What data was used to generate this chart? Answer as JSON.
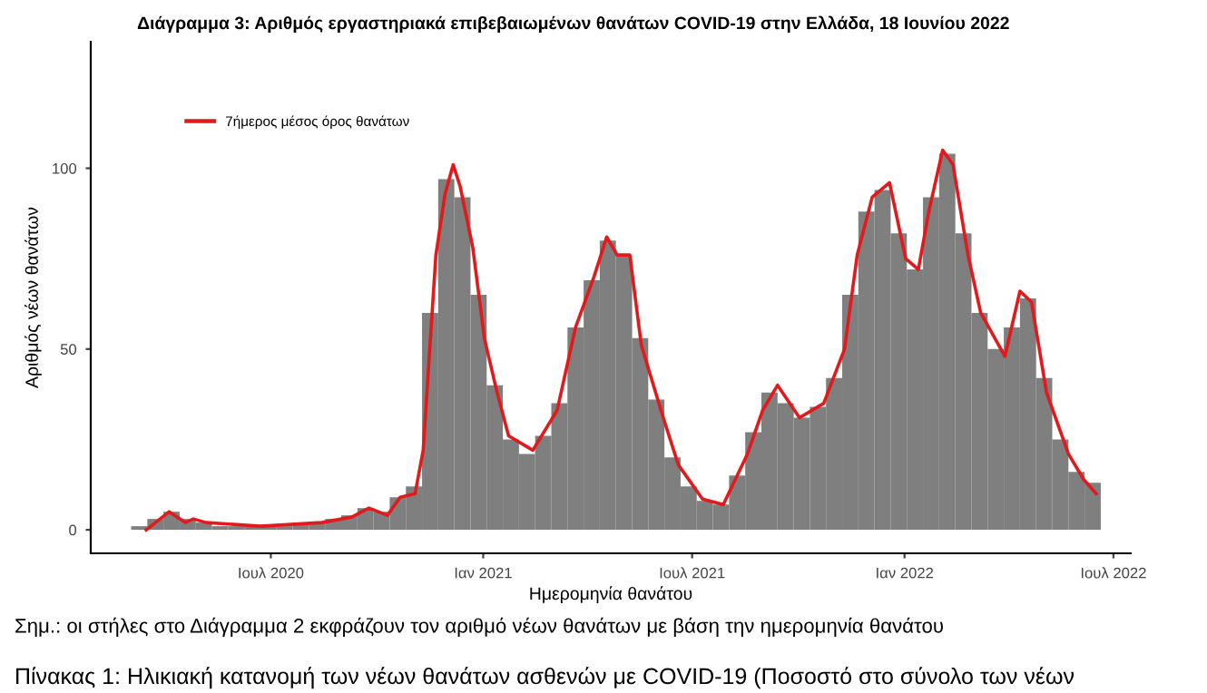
{
  "chart_data": {
    "type": "bar",
    "title": "Διάγραμμα 3: Αριθμός εργαστηριακά επιβεβαιωμένων θανάτων COVID-19 στην Ελλάδα, 18 Ιουνίου 2022",
    "xlabel": "Ημερομηνία θανάτου",
    "ylabel": "Αριθμός νέων θανάτων",
    "annotations": [
      "Σημ.: οι στήλες στο Διάγραμμα 2 εκφράζουν τον αριθμό νέων θανάτων με βάση την ημερομηνία θανάτου",
      "Πίνακας 1: Ηλικιακή κατανομή των νέων θανάτων ασθενών με COVID-19 (Ποσοστό στο σύνολο των νέων"
    ],
    "xlim": [
      "2020-01-27",
      "2022-07-16"
    ],
    "ylim": [
      -6.5,
      135
    ],
    "xticks": [
      {
        "value": "2020-07-01",
        "label": "Ιουλ 2020"
      },
      {
        "value": "2021-01-01",
        "label": "Ιαν 2021"
      },
      {
        "value": "2021-07-01",
        "label": "Ιουλ 2021"
      },
      {
        "value": "2022-01-01",
        "label": "Ιαν 2022"
      },
      {
        "value": "2022-07-01",
        "label": "Ιουλ 2022"
      }
    ],
    "yticks": [
      0,
      50,
      100
    ],
    "grid": false,
    "legend": "top left",
    "line_style": "solid",
    "marker": "none",
    "series": [
      {
        "color": "#7f7f7f",
        "x": [
          "2020-03-09",
          "2020-03-23",
          "2020-04-06",
          "2020-04-20",
          "2020-05-04",
          "2020-05-18",
          "2020-06-01",
          "2020-06-15",
          "2020-06-29",
          "2020-07-13",
          "2020-07-27",
          "2020-08-10",
          "2020-08-24",
          "2020-09-07",
          "2020-09-21",
          "2020-10-05",
          "2020-10-19",
          "2020-11-02",
          "2020-11-16",
          "2020-11-30",
          "2020-12-14",
          "2020-12-28",
          "2021-01-11",
          "2021-01-25",
          "2021-02-08",
          "2021-02-22",
          "2021-03-08",
          "2021-03-22",
          "2021-04-05",
          "2021-04-19",
          "2021-05-03",
          "2021-05-17",
          "2021-05-31",
          "2021-06-14",
          "2021-06-28",
          "2021-07-12",
          "2021-07-26",
          "2021-08-09",
          "2021-08-23",
          "2021-09-06",
          "2021-09-20",
          "2021-10-04",
          "2021-10-18",
          "2021-11-01",
          "2021-11-15",
          "2021-11-29",
          "2021-12-13",
          "2021-12-27",
          "2022-01-10",
          "2022-01-24",
          "2022-02-07",
          "2022-02-21",
          "2022-03-07",
          "2022-03-21",
          "2022-04-04",
          "2022-04-18",
          "2022-05-02",
          "2022-05-16",
          "2022-05-30",
          "2022-06-13"
        ],
        "values": [
          1,
          3,
          5,
          3,
          2,
          1,
          1,
          1,
          1,
          1,
          2,
          2,
          3,
          4,
          6,
          5,
          9,
          12,
          60,
          97,
          92,
          65,
          40,
          25,
          21,
          26,
          35,
          56,
          69,
          80,
          76,
          53,
          36,
          20,
          12,
          8,
          7,
          15,
          27,
          38,
          35,
          31,
          34,
          42,
          65,
          88,
          94,
          82,
          72,
          92,
          104,
          82,
          60,
          50,
          56,
          64,
          42,
          25,
          16,
          13
        ]
      },
      {
        "type": "line",
        "name": "7ήμερος μέσος όρος θανάτων",
        "color": "#e31a1c",
        "x": [
          "2020-03-15",
          "2020-04-04",
          "2020-04-18",
          "2020-04-25",
          "2020-05-06",
          "2020-06-22",
          "2020-08-14",
          "2020-09-09",
          "2020-09-24",
          "2020-10-10",
          "2020-10-21",
          "2020-11-03",
          "2020-11-10",
          "2020-11-21",
          "2020-11-29",
          "2020-12-06",
          "2020-12-12",
          "2020-12-23",
          "2021-01-02",
          "2021-01-13",
          "2021-01-23",
          "2021-02-13",
          "2021-03-06",
          "2021-03-22",
          "2021-04-07",
          "2021-04-18",
          "2021-04-27",
          "2021-05-08",
          "2021-05-18",
          "2021-06-06",
          "2021-06-19",
          "2021-07-10",
          "2021-07-28",
          "2021-08-18",
          "2021-08-31",
          "2021-09-13",
          "2021-10-02",
          "2021-10-23",
          "2021-11-10",
          "2021-11-21",
          "2021-12-04",
          "2021-12-19",
          "2022-01-02",
          "2022-01-13",
          "2022-01-22",
          "2022-02-03",
          "2022-02-12",
          "2022-02-25",
          "2022-03-08",
          "2022-03-29",
          "2022-04-11",
          "2022-04-21",
          "2022-05-04",
          "2022-05-23",
          "2022-06-05",
          "2022-06-16"
        ],
        "values": [
          0,
          5,
          2,
          3,
          2,
          1,
          2,
          3.5,
          6,
          4,
          9,
          10,
          22,
          76,
          93,
          101,
          95,
          78,
          53,
          38,
          26,
          22,
          33,
          56,
          70,
          81,
          76,
          76,
          51,
          31,
          18,
          8.5,
          7,
          21,
          33,
          40,
          31,
          35,
          50,
          76,
          92,
          96,
          75,
          72,
          88,
          105,
          101,
          76,
          60,
          48,
          66,
          63,
          38,
          21,
          14,
          10
        ]
      }
    ]
  }
}
